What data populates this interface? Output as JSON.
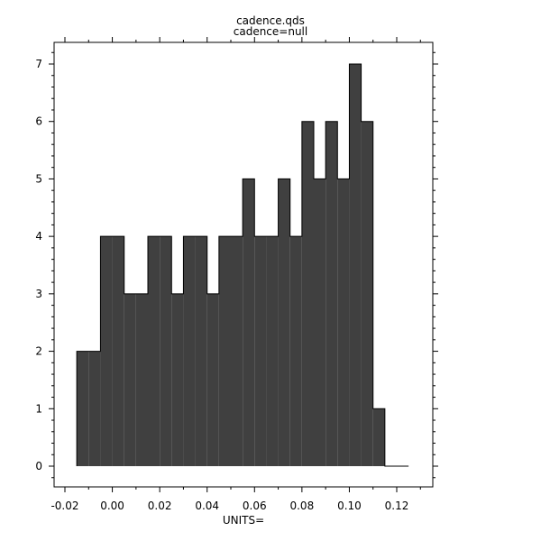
{
  "chart_data": {
    "type": "bar",
    "title": "cadence.qds",
    "subtitle": "cadence=null",
    "xlabel": "UNITS=",
    "ylabel": "",
    "bin_width": 0.005,
    "bin_starts": [
      -0.015,
      -0.01,
      -0.005,
      0.0,
      0.005,
      0.01,
      0.015,
      0.02,
      0.025,
      0.03,
      0.035,
      0.04,
      0.045,
      0.05,
      0.055,
      0.06,
      0.065,
      0.07,
      0.075,
      0.08,
      0.085,
      0.09,
      0.095,
      0.1,
      0.105,
      0.11,
      0.115,
      0.12
    ],
    "values": [
      2,
      2,
      4,
      4,
      3,
      3,
      4,
      4,
      3,
      4,
      4,
      3,
      4,
      4,
      5,
      4,
      4,
      5,
      4,
      6,
      5,
      6,
      5,
      7,
      6,
      1,
      0,
      0
    ],
    "xlim": [
      -0.025,
      0.135
    ],
    "ylim": [
      -0.35,
      7.35
    ],
    "xticks": [
      "-0.02",
      "0.00",
      "0.02",
      "0.04",
      "0.06",
      "0.08",
      "0.10",
      "0.12"
    ],
    "yticks": [
      "0",
      "1",
      "2",
      "3",
      "4",
      "5",
      "6",
      "7"
    ],
    "grid": false,
    "colors": {
      "fill": "#404040",
      "edge": "#000000"
    }
  }
}
